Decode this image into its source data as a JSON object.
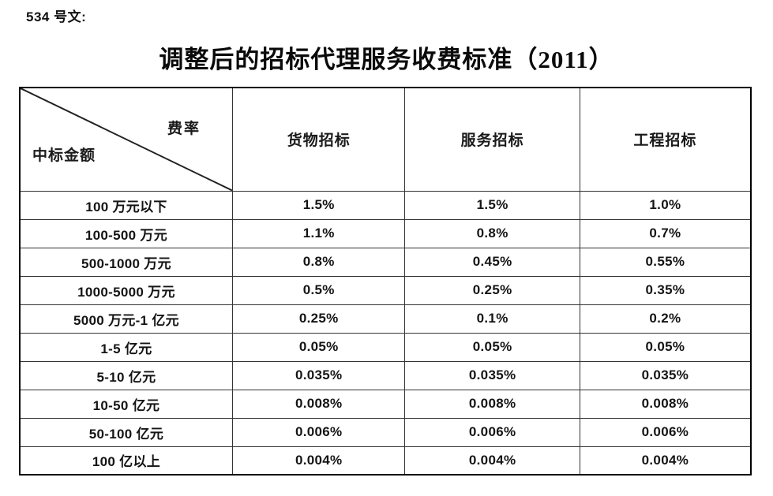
{
  "page": {
    "doc_label": "534 号文:",
    "title": "调整后的招标代理服务收费标准（2011）"
  },
  "table": {
    "corner": {
      "top_right": "费率",
      "bottom_left": "中标金额"
    },
    "columns": [
      "货物招标",
      "服务招标",
      "工程招标"
    ],
    "rows": [
      {
        "label": "100 万元以下",
        "values": [
          "1.5%",
          "1.5%",
          "1.0%"
        ]
      },
      {
        "label": "100-500 万元",
        "values": [
          "1.1%",
          "0.8%",
          "0.7%"
        ]
      },
      {
        "label": "500-1000 万元",
        "values": [
          "0.8%",
          "0.45%",
          "0.55%"
        ]
      },
      {
        "label": "1000-5000 万元",
        "values": [
          "0.5%",
          "0.25%",
          "0.35%"
        ]
      },
      {
        "label": "5000 万元-1 亿元",
        "values": [
          "0.25%",
          "0.1%",
          "0.2%"
        ]
      },
      {
        "label": "1-5 亿元",
        "values": [
          "0.05%",
          "0.05%",
          "0.05%"
        ]
      },
      {
        "label": "5-10 亿元",
        "values": [
          "0.035%",
          "0.035%",
          "0.035%"
        ]
      },
      {
        "label": "10-50 亿元",
        "values": [
          "0.008%",
          "0.008%",
          "0.008%"
        ]
      },
      {
        "label": "50-100 亿元",
        "values": [
          "0.006%",
          "0.006%",
          "0.006%"
        ]
      },
      {
        "label": "100 亿以上",
        "values": [
          "0.004%",
          "0.004%",
          "0.004%"
        ]
      }
    ]
  },
  "colors": {
    "border_inner": "#333333",
    "border_outer": "#000000",
    "text": "#1a1a1a",
    "background": "#ffffff"
  }
}
